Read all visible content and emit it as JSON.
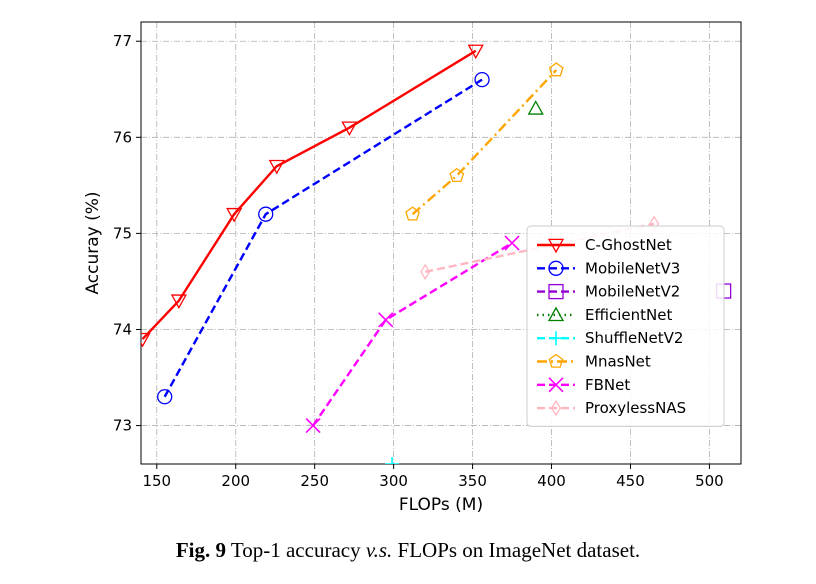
{
  "chart_data": {
    "type": "line",
    "xlabel": "FLOPs (M)",
    "ylabel": "Accuray (%)",
    "xlim": [
      140,
      520
    ],
    "ylim": [
      72.6,
      77.2
    ],
    "x_ticks": [
      150,
      200,
      250,
      300,
      350,
      400,
      450,
      500
    ],
    "y_ticks": [
      73,
      74,
      75,
      76,
      77
    ],
    "grid": true,
    "legend_position": "lower-right",
    "series": [
      {
        "name": "C-GhostNet",
        "color": "#ff0000",
        "line": "solid",
        "marker": "triangle-down",
        "x": [
          141,
          164,
          199,
          226,
          272,
          352
        ],
        "y": [
          73.9,
          74.3,
          75.2,
          75.7,
          76.1,
          76.9
        ]
      },
      {
        "name": "MobileNetV3",
        "color": "#0000ff",
        "line": "dashed",
        "marker": "circle",
        "x": [
          155,
          219,
          356
        ],
        "y": [
          73.3,
          75.2,
          76.6
        ]
      },
      {
        "name": "MobileNetV2",
        "color": "#9400d3",
        "line": "dashed",
        "marker": "square",
        "x": [
          509
        ],
        "y": [
          74.4
        ]
      },
      {
        "name": "EfficientNet",
        "color": "#008000",
        "line": "dotted",
        "marker": "triangle-up",
        "x": [
          390
        ],
        "y": [
          76.3
        ]
      },
      {
        "name": "ShuffleNetV2",
        "color": "#00ffff",
        "line": "dashed",
        "marker": "plus",
        "x": [
          299
        ],
        "y": [
          72.6
        ]
      },
      {
        "name": "MnasNet",
        "color": "#ffa500",
        "line": "dashdot",
        "marker": "pentagon",
        "x": [
          312,
          340,
          403
        ],
        "y": [
          75.2,
          75.6,
          76.7
        ]
      },
      {
        "name": "FBNet",
        "color": "#ff00ff",
        "line": "dashed",
        "marker": "x",
        "x": [
          249,
          295,
          375
        ],
        "y": [
          73.0,
          74.1,
          74.9
        ]
      },
      {
        "name": "ProxylessNAS",
        "color": "#ffb6c1",
        "line": "dashed",
        "marker": "thin-diamond",
        "x": [
          320,
          465
        ],
        "y": [
          74.6,
          75.1
        ]
      }
    ]
  },
  "caption": {
    "label": "Fig. 9",
    "text_before": " Top-1 accuracy ",
    "vs": "v.s.",
    "text_after": " FLOPs on ImageNet dataset."
  }
}
